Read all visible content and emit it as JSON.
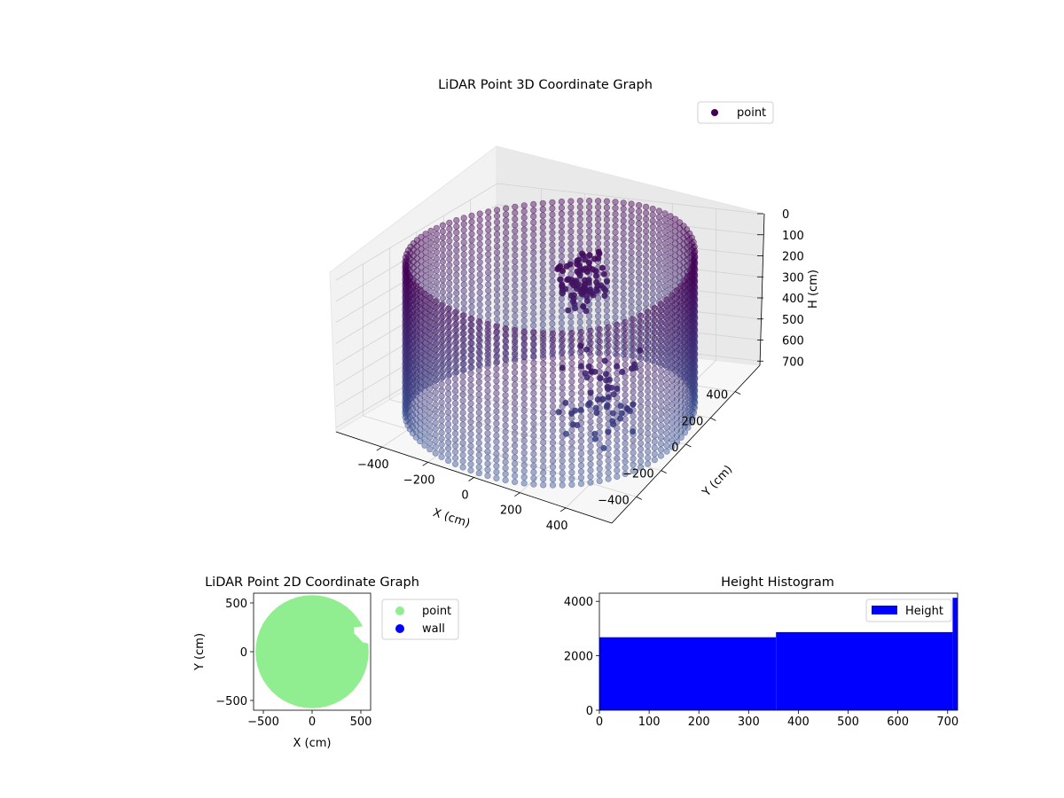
{
  "chart_data": [
    {
      "type": "scatter",
      "projection": "3d",
      "title": "LiDAR Point 3D Coordinate Graph",
      "xlabel": "X (cm)",
      "ylabel": "Y (cm)",
      "zlabel": "H (cm)",
      "x_ticks": [
        -400,
        -200,
        0,
        200,
        400
      ],
      "y_ticks": [
        -400,
        -200,
        0,
        200,
        400
      ],
      "z_ticks": [
        0,
        100,
        200,
        300,
        400,
        500,
        600,
        700
      ],
      "xlim": [
        -600,
        600
      ],
      "ylim": [
        -600,
        600
      ],
      "zlim": [
        0,
        720
      ],
      "z_inverted": true,
      "legend": [
        "point"
      ],
      "legend_position": "top-right",
      "colormap": "viridis (dark purple to blue-grey)",
      "marker_color": "#440154",
      "series": [
        {
          "name": "point",
          "shape": "cylindrical wall of points",
          "wall_radius": 560,
          "height_range": [
            0,
            720
          ],
          "interior_points": "clustered objects near the ceiling plus scattered points"
        }
      ]
    },
    {
      "type": "scatter",
      "title": "LiDAR Point 2D Coordinate Graph",
      "xlabel": "X (cm)",
      "ylabel": "Y (cm)",
      "x_ticks": [
        -500,
        0,
        500
      ],
      "y_ticks": [
        -500,
        0,
        500
      ],
      "xlim": [
        -600,
        600
      ],
      "ylim": [
        -600,
        600
      ],
      "legend_position": "outside-right",
      "series": [
        {
          "name": "point",
          "color": "#90ee90",
          "description": "filled disc of radius ~580 cm"
        },
        {
          "name": "wall",
          "color": "#0000ff"
        }
      ]
    },
    {
      "type": "bar",
      "title": "Height Histogram",
      "x_ticks": [
        0,
        100,
        200,
        300,
        400,
        500,
        600,
        700
      ],
      "y_ticks": [
        0,
        2000,
        4000
      ],
      "xlim": [
        0,
        720
      ],
      "ylim": [
        0,
        4300
      ],
      "legend": [
        "Height"
      ],
      "legend_position": "top-right",
      "color": "#0000ff",
      "bins": [
        {
          "start": 0,
          "end": 355,
          "count": 2680
        },
        {
          "start": 355,
          "end": 710,
          "count": 2870
        },
        {
          "start": 710,
          "end": 720,
          "count": 4130
        }
      ]
    }
  ]
}
